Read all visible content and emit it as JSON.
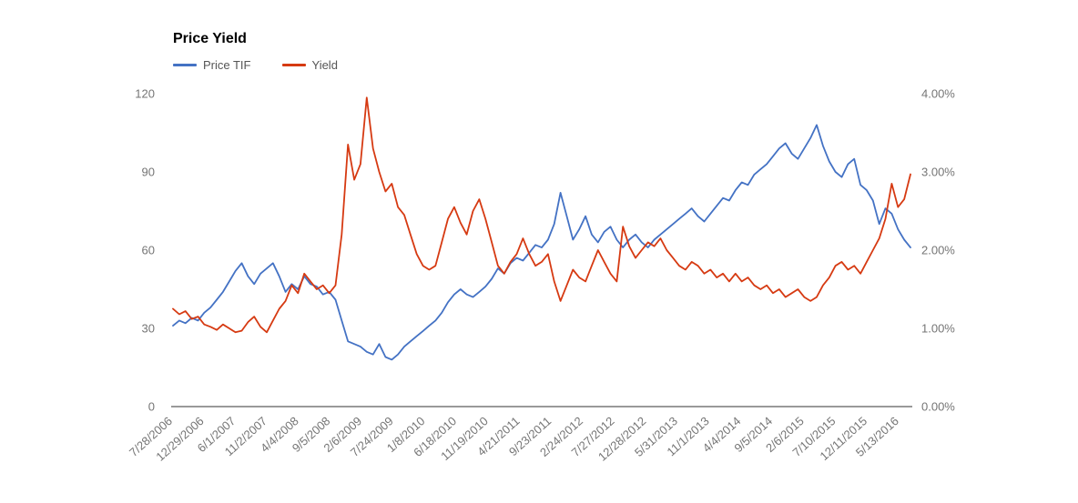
{
  "chart": {
    "title": "Price Yield"
  },
  "chart_data": {
    "type": "line",
    "title": "Price Yield",
    "legend_position": "top-left",
    "grid": false,
    "x_start": "7/28/2006",
    "x_end": "5/13/2016",
    "x_sampling": "monthly estimates between labeled weekly dates",
    "x_tick_labels": [
      "7/28/2006",
      "12/29/2006",
      "6/1/2007",
      "11/2/2007",
      "4/4/2008",
      "9/5/2008",
      "2/6/2009",
      "7/24/2009",
      "1/8/2010",
      "6/18/2010",
      "11/19/2010",
      "4/21/2011",
      "9/23/2011",
      "2/24/2012",
      "7/27/2012",
      "12/28/2012",
      "5/31/2013",
      "11/1/2013",
      "4/4/2014",
      "9/5/2014",
      "2/6/2015",
      "7/10/2015",
      "12/11/2015",
      "5/13/2016"
    ],
    "left_axis": {
      "ticks": [
        0,
        30,
        60,
        90,
        120
      ],
      "range": [
        0,
        120
      ]
    },
    "right_axis": {
      "ticks": [
        "0.00%",
        "1.00%",
        "2.00%",
        "3.00%",
        "4.00%"
      ],
      "tick_values": [
        0,
        1,
        2,
        3,
        4
      ],
      "range": [
        0,
        4
      ]
    },
    "series": [
      {
        "name": "Price TIF",
        "axis": "left",
        "color": "#4472c4",
        "values": [
          31,
          33,
          32,
          34,
          33,
          36,
          38,
          41,
          44,
          48,
          52,
          55,
          50,
          47,
          51,
          53,
          55,
          50,
          44,
          47,
          45,
          50,
          47,
          46,
          43,
          44,
          41,
          33,
          25,
          24,
          23,
          21,
          20,
          24,
          19,
          18,
          20,
          23,
          25,
          27,
          29,
          31,
          33,
          36,
          40,
          43,
          45,
          43,
          42,
          44,
          46,
          49,
          53,
          51,
          55,
          57,
          56,
          59,
          62,
          61,
          64,
          70,
          82,
          73,
          64,
          68,
          73,
          66,
          63,
          67,
          69,
          64,
          61,
          64,
          66,
          63,
          61,
          64,
          66,
          68,
          70,
          72,
          74,
          76,
          73,
          71,
          74,
          77,
          80,
          79,
          83,
          86,
          85,
          89,
          91,
          93,
          96,
          99,
          101,
          97,
          95,
          99,
          103,
          108,
          100,
          94,
          90,
          88,
          93,
          95,
          85,
          83,
          79,
          70,
          76,
          74,
          68,
          64,
          61
        ]
      },
      {
        "name": "Yield",
        "axis": "right",
        "color": "#d63a12",
        "values": [
          1.25,
          1.18,
          1.22,
          1.12,
          1.15,
          1.05,
          1.02,
          0.98,
          1.05,
          1.0,
          0.95,
          0.97,
          1.08,
          1.15,
          1.02,
          0.95,
          1.1,
          1.25,
          1.35,
          1.55,
          1.45,
          1.7,
          1.6,
          1.5,
          1.55,
          1.45,
          1.55,
          2.2,
          3.35,
          2.9,
          3.1,
          3.95,
          3.3,
          3.0,
          2.75,
          2.85,
          2.55,
          2.45,
          2.2,
          1.95,
          1.8,
          1.75,
          1.8,
          2.1,
          2.4,
          2.55,
          2.35,
          2.2,
          2.5,
          2.65,
          2.4,
          2.1,
          1.8,
          1.7,
          1.85,
          1.95,
          2.15,
          1.95,
          1.8,
          1.85,
          1.95,
          1.6,
          1.35,
          1.55,
          1.75,
          1.65,
          1.6,
          1.8,
          2.0,
          1.85,
          1.7,
          1.6,
          2.3,
          2.05,
          1.9,
          2.0,
          2.1,
          2.05,
          2.15,
          2.0,
          1.9,
          1.8,
          1.75,
          1.85,
          1.8,
          1.7,
          1.75,
          1.65,
          1.7,
          1.6,
          1.7,
          1.6,
          1.65,
          1.55,
          1.5,
          1.55,
          1.45,
          1.5,
          1.4,
          1.45,
          1.5,
          1.4,
          1.35,
          1.4,
          1.55,
          1.65,
          1.8,
          1.85,
          1.75,
          1.8,
          1.7,
          1.85,
          2.0,
          2.15,
          2.4,
          2.85,
          2.55,
          2.65,
          2.97
        ]
      }
    ],
    "style": {
      "axis_text_color": "#757575",
      "baseline_color": "#333333",
      "background": "#ffffff"
    }
  }
}
